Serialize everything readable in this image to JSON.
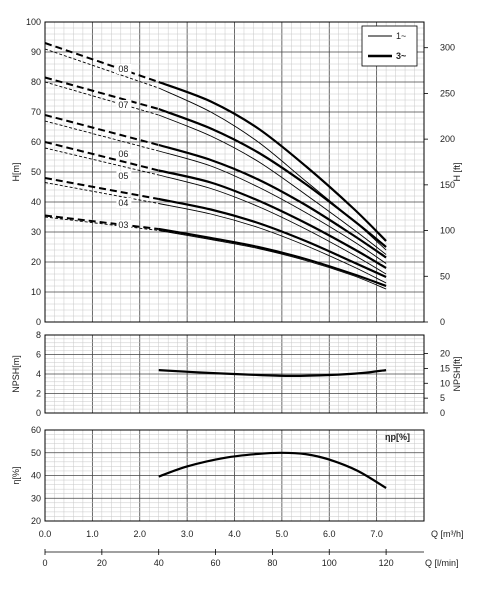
{
  "chart_data": [
    {
      "type": "line",
      "panel": "head",
      "ylabel_left": "H[m]",
      "ylabel_right": "H [ft]",
      "ylim": [
        0,
        100
      ],
      "ylim_right_ft": [
        0,
        328.1
      ],
      "yticks_left": [
        "0",
        "10",
        "20",
        "30",
        "40",
        "50",
        "60",
        "70",
        "80",
        "90",
        "100"
      ],
      "yticks_right": [
        "0",
        "50",
        "100",
        "150",
        "200",
        "250",
        "300"
      ],
      "grid": true,
      "legend": {
        "placement": "top-right",
        "entries": [
          {
            "name": "1~",
            "style": "thin"
          },
          {
            "name": "3~",
            "style": "thick"
          }
        ]
      },
      "curve_labels": [
        "08",
        "07",
        "06",
        "05",
        "04",
        "03"
      ],
      "x_unit": "m³/h",
      "series": [
        {
          "name": "08",
          "phase": "3~",
          "x": [
            0,
            2.4
          ],
          "y": [
            93,
            80
          ],
          "x_solid": [
            2.4,
            3.5,
            4.5,
            5.5,
            6.5,
            7.2
          ],
          "y_solid": [
            80,
            73.5,
            64.5,
            52,
            38,
            27
          ]
        },
        {
          "name": "08",
          "phase": "1~",
          "x": [
            0,
            2.4
          ],
          "y": [
            91,
            78
          ],
          "x_solid": [
            2.4,
            3.5,
            4.5,
            5.5,
            6.5,
            7.2
          ],
          "y_solid": [
            78,
            70,
            60,
            47,
            34,
            24
          ]
        },
        {
          "name": "07",
          "phase": "3~",
          "x": [
            0,
            2.4
          ],
          "y": [
            81.5,
            71
          ],
          "x_solid": [
            2.4,
            3.5,
            4.5,
            5.5,
            6.5,
            7.2
          ],
          "y_solid": [
            71,
            64.5,
            56.5,
            46,
            34,
            25
          ]
        },
        {
          "name": "07",
          "phase": "1~",
          "x": [
            0,
            2.4
          ],
          "y": [
            80,
            69
          ],
          "x_solid": [
            2.4,
            3.5,
            4.5,
            5.5,
            6.5,
            7.2
          ],
          "y_solid": [
            69,
            62,
            53.5,
            42.5,
            31,
            22.5
          ]
        },
        {
          "name": "06",
          "phase": "3~",
          "x": [
            0,
            2.4
          ],
          "y": [
            69,
            59
          ],
          "x_solid": [
            2.4,
            3.5,
            4.5,
            5.5,
            6.5,
            7.2
          ],
          "y_solid": [
            59,
            54,
            47.5,
            39,
            29,
            21.5
          ]
        },
        {
          "name": "06",
          "phase": "1~",
          "x": [
            0,
            2.4
          ],
          "y": [
            67,
            57
          ],
          "x_solid": [
            2.4,
            3.5,
            4.5,
            5.5,
            6.5,
            7.2
          ],
          "y_solid": [
            57,
            52,
            45,
            36.5,
            27,
            19.5
          ]
        },
        {
          "name": "05",
          "phase": "3~",
          "x": [
            0,
            2.4
          ],
          "y": [
            60,
            50.5
          ],
          "x_solid": [
            2.4,
            3.5,
            4.5,
            5.5,
            6.5,
            7.2
          ],
          "y_solid": [
            50.5,
            46.5,
            40.5,
            33,
            24.5,
            18
          ]
        },
        {
          "name": "05",
          "phase": "1~",
          "x": [
            0,
            2.4
          ],
          "y": [
            58,
            49
          ],
          "x_solid": [
            2.4,
            3.5,
            4.5,
            5.5,
            6.5,
            7.2
          ],
          "y_solid": [
            49,
            44.5,
            38.5,
            31,
            22.5,
            16
          ]
        },
        {
          "name": "04",
          "phase": "3~",
          "x": [
            0,
            2.4
          ],
          "y": [
            48,
            41
          ],
          "x_solid": [
            2.4,
            3.5,
            4.5,
            5.5,
            6.5,
            7.2
          ],
          "y_solid": [
            41,
            37.5,
            33,
            27,
            20,
            15
          ]
        },
        {
          "name": "04",
          "phase": "1~",
          "x": [
            0,
            2.4
          ],
          "y": [
            46.5,
            39.5
          ],
          "x_solid": [
            2.4,
            3.5,
            4.5,
            5.5,
            6.5,
            7.2
          ],
          "y_solid": [
            39.5,
            36,
            31.5,
            25.5,
            18.5,
            13
          ]
        },
        {
          "name": "03",
          "phase": "3~",
          "x": [
            0,
            2.4
          ],
          "y": [
            35.5,
            31
          ],
          "x_solid": [
            2.4,
            3.5,
            4.5,
            5.5,
            6.5,
            7.2
          ],
          "y_solid": [
            31,
            28,
            25,
            21,
            16,
            12
          ]
        },
        {
          "name": "03",
          "phase": "1~",
          "x": [
            0,
            2.4
          ],
          "y": [
            35,
            30.5
          ],
          "x_solid": [
            2.4,
            3.5,
            4.5,
            5.5,
            6.5,
            7.2
          ],
          "y_solid": [
            30.5,
            27.5,
            24.5,
            20.5,
            15.5,
            11
          ]
        }
      ]
    },
    {
      "type": "line",
      "panel": "npsh",
      "ylabel_left": "NPSH[m]",
      "ylabel_right": "NPSH[ft]",
      "ylim": [
        0,
        8
      ],
      "ylim_right_ft": [
        0,
        26.25
      ],
      "yticks_left": [
        "0",
        "2",
        "4",
        "6",
        "8"
      ],
      "yticks_right": [
        "0",
        "5",
        "10",
        "15",
        "20"
      ],
      "grid": true,
      "series": [
        {
          "x": [
            2.4,
            3.5,
            4.5,
            5.2,
            6.0,
            6.7,
            7.2
          ],
          "y": [
            4.4,
            4.1,
            3.9,
            3.8,
            3.9,
            4.1,
            4.4
          ]
        }
      ]
    },
    {
      "type": "line",
      "panel": "efficiency",
      "ylabel_left": "η[%]",
      "ylim": [
        20,
        60
      ],
      "yticks_left": [
        "20",
        "30",
        "40",
        "50",
        "60"
      ],
      "legend": {
        "placement": "top-right",
        "entries": [
          {
            "name": "ηp[%]"
          }
        ]
      },
      "grid": true,
      "series": [
        {
          "x": [
            2.4,
            3.0,
            3.8,
            4.5,
            5.0,
            5.5,
            6.0,
            6.6,
            7.2
          ],
          "y": [
            39.5,
            44,
            47.8,
            49.5,
            50,
            49.4,
            47,
            42,
            34.5
          ]
        }
      ],
      "xlabel_m3h": "Q [m³/h]",
      "xticks_m3h": [
        "0.0",
        "1.0",
        "2.0",
        "3.0",
        "4.0",
        "5.0",
        "6.0",
        "7.0"
      ],
      "xlim_m3h": [
        0,
        8
      ],
      "xlabel_lmin": "Q [l/min]",
      "xticks_lmin": [
        "0",
        "20",
        "40",
        "60",
        "80",
        "100",
        "120"
      ]
    }
  ]
}
